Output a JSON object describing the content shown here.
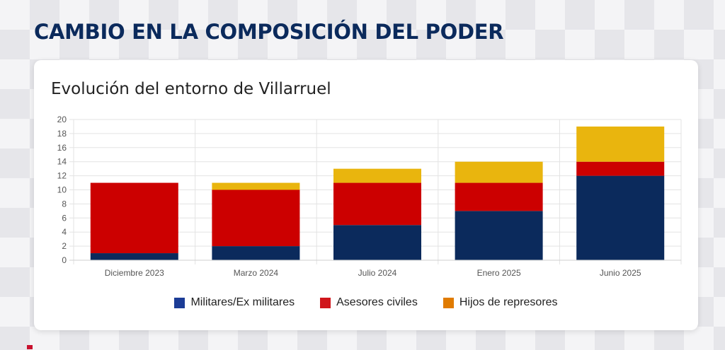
{
  "slide": {
    "title": "CAMBIO EN LA COMPOSICIÓN DEL PODER"
  },
  "colors": {
    "militares": "#0b2a5c",
    "asesores": "#cc0000",
    "hijos": "#e9b50e",
    "hijos_legend": "#e07b00",
    "militares_legend": "#1c3c96",
    "asesores_legend": "#d0161c"
  },
  "chart_data": {
    "type": "bar",
    "stacked": true,
    "title": "Evolución del entorno de Villarruel",
    "xlabel": "",
    "ylabel": "",
    "categories": [
      "Diciembre 2023",
      "Marzo 2024",
      "Julio 2024",
      "Enero 2025",
      "Junio 2025"
    ],
    "series": [
      {
        "name": "Militares/Ex militares",
        "values": [
          1,
          2,
          5,
          7,
          12
        ]
      },
      {
        "name": "Asesores civiles",
        "values": [
          10,
          8,
          6,
          4,
          2
        ]
      },
      {
        "name": "Hijos de represores",
        "values": [
          0,
          1,
          2,
          3,
          5
        ]
      }
    ],
    "ylim": [
      0,
      20
    ],
    "yticks": [
      0,
      2,
      4,
      6,
      8,
      10,
      12,
      14,
      16,
      18,
      20
    ],
    "grid": true,
    "legend_position": "bottom"
  }
}
